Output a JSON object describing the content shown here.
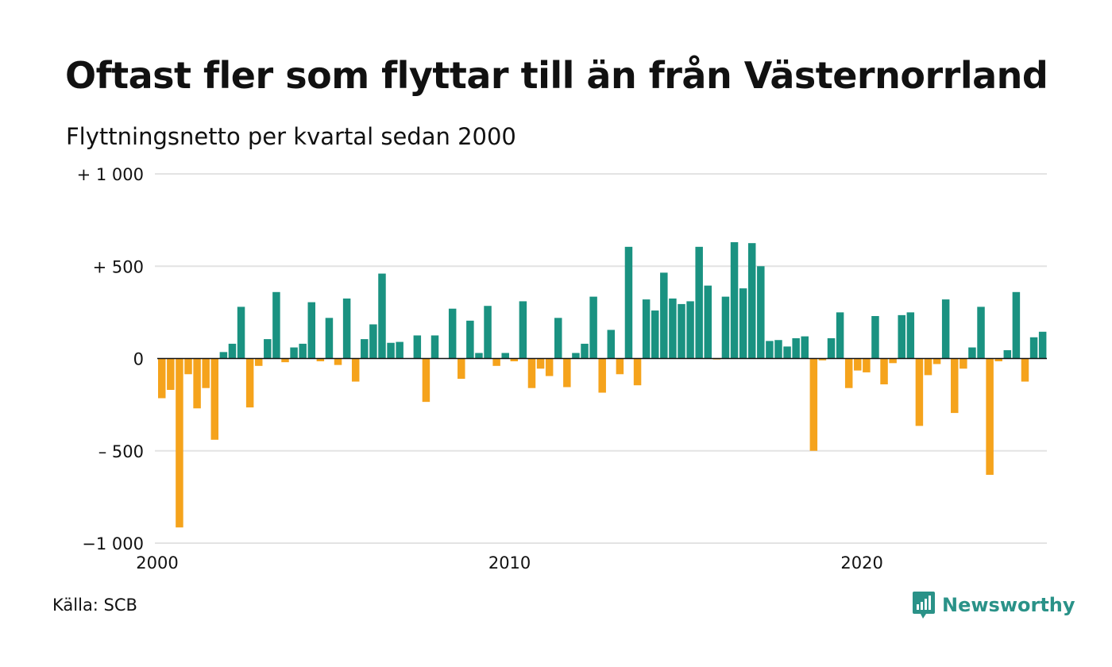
{
  "title": "Oftast fler som flyttar till än från Västernorrland",
  "subtitle": "Flyttningsnetto per kvartal sedan 2000",
  "source": "Källa: SCB",
  "brand": {
    "name": "Newsworthy",
    "icon": "newsworthy-logo-icon",
    "color": "#2a9288"
  },
  "colors": {
    "positive": "#1a9281",
    "negative": "#f5a31c",
    "grid": "#e3e3e3",
    "zero_line": "#111111"
  },
  "chart_data": {
    "type": "bar",
    "title": "",
    "xlabel": "",
    "ylabel": "",
    "ylim": [
      -1000,
      1000
    ],
    "grid": true,
    "yticks": [
      {
        "value": 1000,
        "label": "+ 1 000"
      },
      {
        "value": 500,
        "label": "+   500"
      },
      {
        "value": 0,
        "label": "0"
      },
      {
        "value": -500,
        "label": "–  500"
      },
      {
        "value": -1000,
        "label": "−1 000"
      }
    ],
    "xticks": [
      {
        "value": "2000",
        "label": "2000"
      },
      {
        "value": "2010",
        "label": "2010"
      },
      {
        "value": "2020",
        "label": "2020"
      }
    ],
    "categories": [
      "2000K1",
      "2000K2",
      "2000K3",
      "2000K4",
      "2001K1",
      "2001K2",
      "2001K3",
      "2001K4",
      "2002K1",
      "2002K2",
      "2002K3",
      "2002K4",
      "2003K1",
      "2003K2",
      "2003K3",
      "2003K4",
      "2004K1",
      "2004K2",
      "2004K3",
      "2004K4",
      "2005K1",
      "2005K2",
      "2005K3",
      "2005K4",
      "2006K1",
      "2006K2",
      "2006K3",
      "2006K4",
      "2007K1",
      "2007K2",
      "2007K3",
      "2007K4",
      "2008K1",
      "2008K2",
      "2008K3",
      "2008K4",
      "2009K1",
      "2009K2",
      "2009K3",
      "2009K4",
      "2010K1",
      "2010K2",
      "2010K3",
      "2010K4",
      "2011K1",
      "2011K2",
      "2011K3",
      "2011K4",
      "2012K1",
      "2012K2",
      "2012K3",
      "2012K4",
      "2013K1",
      "2013K2",
      "2013K3",
      "2013K4",
      "2014K1",
      "2014K2",
      "2014K3",
      "2014K4",
      "2015K1",
      "2015K2",
      "2015K3",
      "2015K4",
      "2016K1",
      "2016K2",
      "2016K3",
      "2016K4",
      "2017K1",
      "2017K2",
      "2017K3",
      "2017K4",
      "2018K1",
      "2018K2",
      "2018K3",
      "2018K4",
      "2019K1",
      "2019K2",
      "2019K3",
      "2019K4",
      "2020K1",
      "2020K2",
      "2020K3",
      "2020K4",
      "2021K1",
      "2021K2",
      "2021K3",
      "2021K4",
      "2022K1",
      "2022K2",
      "2022K3",
      "2022K4",
      "2023K1",
      "2023K2",
      "2023K3",
      "2023K4",
      "2024K1",
      "2024K2",
      "2024K3",
      "2024K4",
      "2025K1"
    ],
    "values": [
      -215,
      -170,
      -915,
      -85,
      -270,
      -160,
      -440,
      35,
      80,
      280,
      -265,
      -40,
      105,
      360,
      -20,
      60,
      80,
      305,
      -15,
      220,
      -35,
      325,
      -125,
      105,
      185,
      460,
      85,
      90,
      0,
      125,
      -235,
      125,
      0,
      270,
      -110,
      205,
      30,
      285,
      -40,
      30,
      -15,
      310,
      -160,
      -55,
      -95,
      220,
      -155,
      30,
      80,
      335,
      -185,
      155,
      -85,
      605,
      -145,
      320,
      260,
      465,
      325,
      295,
      310,
      605,
      395,
      -5,
      335,
      630,
      380,
      625,
      500,
      95,
      100,
      65,
      110,
      120,
      -500,
      -10,
      110,
      250,
      -160,
      -65,
      -75,
      230,
      -140,
      -25,
      235,
      250,
      -365,
      -90,
      -30,
      320,
      -295,
      -55,
      60,
      280,
      -630,
      -15,
      45,
      360,
      -125,
      115,
      145
    ]
  }
}
